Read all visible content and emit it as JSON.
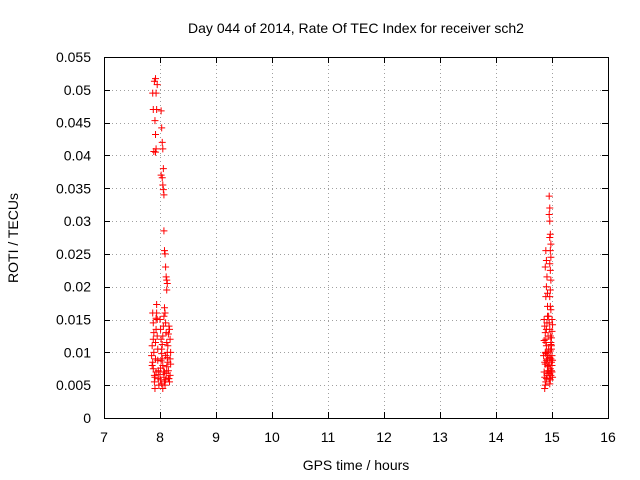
{
  "chart_data": {
    "type": "scatter",
    "title": "Day 044 of 2014, Rate Of TEC Index for receiver sch2",
    "xlabel": "GPS time / hours",
    "ylabel": "ROTI / TECUs",
    "xlim": [
      7,
      16
    ],
    "ylim": [
      0,
      0.055
    ],
    "xticks": [
      7,
      8,
      9,
      10,
      11,
      12,
      13,
      14,
      15,
      16
    ],
    "yticks": [
      0,
      0.005,
      0.01,
      0.015,
      0.02,
      0.025,
      0.03,
      0.035,
      0.04,
      0.045,
      0.05,
      0.055
    ],
    "xtick_labels": [
      "7",
      "8",
      "9",
      "10",
      "11",
      "12",
      "13",
      "14",
      "15",
      "16"
    ],
    "ytick_labels": [
      "0",
      "0.005",
      "0.01",
      "0.015",
      "0.02",
      "0.025",
      "0.03",
      "0.035",
      "0.04",
      "0.045",
      "0.05",
      "0.055"
    ],
    "grid": true,
    "marker": "+",
    "series": [
      {
        "name": "sch2",
        "color": "#ff0000",
        "points": [
          [
            7.87,
            0.0495
          ],
          [
            7.9,
            0.0513
          ],
          [
            7.92,
            0.0517
          ],
          [
            7.93,
            0.0495
          ],
          [
            7.95,
            0.0508
          ],
          [
            7.94,
            0.047
          ],
          [
            7.88,
            0.047
          ],
          [
            7.91,
            0.0453
          ],
          [
            7.92,
            0.0432
          ],
          [
            7.89,
            0.0406
          ],
          [
            7.92,
            0.0405
          ],
          [
            7.93,
            0.041
          ],
          [
            7.87,
            0.016
          ],
          [
            7.88,
            0.0145
          ],
          [
            7.88,
            0.012
          ],
          [
            7.89,
            0.01
          ],
          [
            7.87,
            0.0085
          ],
          [
            7.88,
            0.0075
          ],
          [
            7.9,
            0.0065
          ],
          [
            7.9,
            0.0055
          ],
          [
            7.91,
            0.0045
          ],
          [
            7.91,
            0.0062
          ],
          [
            7.92,
            0.009
          ],
          [
            7.92,
            0.0115
          ],
          [
            7.93,
            0.0135
          ],
          [
            7.93,
            0.0152
          ],
          [
            7.94,
            0.016
          ],
          [
            7.94,
            0.0173
          ],
          [
            7.95,
            0.015
          ],
          [
            7.95,
            0.0125
          ],
          [
            7.96,
            0.0105
          ],
          [
            7.96,
            0.0088
          ],
          [
            7.97,
            0.0072
          ],
          [
            7.97,
            0.006
          ],
          [
            7.98,
            0.005
          ],
          [
            7.86,
            0.011
          ],
          [
            7.85,
            0.0095
          ],
          [
            7.86,
            0.008
          ],
          [
            7.89,
            0.013
          ],
          [
            7.93,
            0.007
          ],
          [
            8.02,
            0.0468
          ],
          [
            8.03,
            0.0442
          ],
          [
            8.04,
            0.042
          ],
          [
            8.05,
            0.041
          ],
          [
            8.02,
            0.037
          ],
          [
            8.04,
            0.0366
          ],
          [
            8.05,
            0.0355
          ],
          [
            8.06,
            0.0348
          ],
          [
            8.07,
            0.034
          ],
          [
            8.06,
            0.038
          ],
          [
            8.07,
            0.0285
          ],
          [
            8.08,
            0.0255
          ],
          [
            8.09,
            0.025
          ],
          [
            8.1,
            0.023
          ],
          [
            8.11,
            0.0215
          ],
          [
            8.12,
            0.021
          ],
          [
            8.13,
            0.0205
          ],
          [
            8.12,
            0.0195
          ],
          [
            8.0,
            0.015
          ],
          [
            8.01,
            0.0135
          ],
          [
            8.02,
            0.012
          ],
          [
            8.03,
            0.0105
          ],
          [
            8.04,
            0.009
          ],
          [
            8.05,
            0.008
          ],
          [
            8.06,
            0.007
          ],
          [
            8.07,
            0.0062
          ],
          [
            8.08,
            0.0055
          ],
          [
            8.09,
            0.005
          ],
          [
            8.1,
            0.0058
          ],
          [
            8.11,
            0.0068
          ],
          [
            8.12,
            0.0078
          ],
          [
            8.13,
            0.0092
          ],
          [
            8.14,
            0.011
          ],
          [
            8.15,
            0.0128
          ],
          [
            8.16,
            0.014
          ],
          [
            8.17,
            0.0135
          ],
          [
            8.18,
            0.012
          ],
          [
            8.19,
            0.01
          ],
          [
            8.19,
            0.0082
          ],
          [
            8.18,
            0.0065
          ],
          [
            8.17,
            0.0055
          ],
          [
            8.16,
            0.006
          ],
          [
            8.15,
            0.0072
          ],
          [
            8.14,
            0.0085
          ],
          [
            8.13,
            0.01
          ],
          [
            8.12,
            0.0115
          ],
          [
            8.11,
            0.013
          ],
          [
            8.1,
            0.0145
          ],
          [
            8.09,
            0.016
          ],
          [
            8.08,
            0.0168
          ],
          [
            8.07,
            0.0155
          ],
          [
            8.06,
            0.014
          ],
          [
            8.05,
            0.0125
          ],
          [
            8.04,
            0.0112
          ],
          [
            8.03,
            0.0098
          ],
          [
            8.02,
            0.0087
          ],
          [
            8.01,
            0.0076
          ],
          [
            8.0,
            0.0066
          ],
          [
            8.01,
            0.0058
          ],
          [
            8.03,
            0.0052
          ],
          [
            8.05,
            0.0045
          ],
          [
            8.08,
            0.007
          ],
          [
            8.1,
            0.0095
          ],
          [
            8.15,
            0.006
          ],
          [
            8.18,
            0.009
          ],
          [
            14.89,
            0.0255
          ],
          [
            14.9,
            0.024
          ],
          [
            14.88,
            0.023
          ],
          [
            14.91,
            0.0215
          ],
          [
            14.9,
            0.02
          ],
          [
            14.92,
            0.019
          ],
          [
            14.89,
            0.0185
          ],
          [
            14.92,
            0.017
          ],
          [
            14.86,
            0.015
          ],
          [
            14.87,
            0.014
          ],
          [
            14.88,
            0.013
          ],
          [
            14.89,
            0.012
          ],
          [
            14.9,
            0.011
          ],
          [
            14.91,
            0.01
          ],
          [
            14.92,
            0.009
          ],
          [
            14.93,
            0.008
          ],
          [
            14.92,
            0.0072
          ],
          [
            14.91,
            0.0065
          ],
          [
            14.9,
            0.006
          ],
          [
            14.89,
            0.0055
          ],
          [
            14.88,
            0.005
          ],
          [
            14.87,
            0.0045
          ],
          [
            14.86,
            0.007
          ],
          [
            14.87,
            0.0085
          ],
          [
            14.88,
            0.01
          ],
          [
            14.89,
            0.0115
          ],
          [
            14.9,
            0.0135
          ],
          [
            14.91,
            0.0145
          ],
          [
            14.92,
            0.0155
          ],
          [
            14.93,
            0.0125
          ],
          [
            14.94,
            0.0105
          ],
          [
            14.93,
            0.0095
          ],
          [
            14.92,
            0.0078
          ],
          [
            14.91,
            0.0068
          ],
          [
            14.9,
            0.0088
          ],
          [
            14.89,
            0.0098
          ],
          [
            14.88,
            0.0082
          ],
          [
            14.87,
            0.0062
          ],
          [
            14.86,
            0.0118
          ],
          [
            14.85,
            0.0095
          ],
          [
            14.95,
            0.0338
          ],
          [
            14.96,
            0.032
          ],
          [
            14.95,
            0.031
          ],
          [
            14.96,
            0.03
          ],
          [
            14.97,
            0.028
          ],
          [
            14.96,
            0.0275
          ],
          [
            14.98,
            0.0265
          ],
          [
            14.97,
            0.0255
          ],
          [
            14.98,
            0.0245
          ],
          [
            14.96,
            0.0235
          ],
          [
            14.97,
            0.0225
          ],
          [
            14.98,
            0.021
          ],
          [
            14.97,
            0.0195
          ],
          [
            14.96,
            0.0185
          ],
          [
            14.97,
            0.017
          ],
          [
            14.98,
            0.0165
          ],
          [
            14.94,
            0.0155
          ],
          [
            14.95,
            0.0145
          ],
          [
            14.96,
            0.0135
          ],
          [
            14.97,
            0.0125
          ],
          [
            14.98,
            0.0115
          ],
          [
            14.99,
            0.0105
          ],
          [
            15.0,
            0.0095
          ],
          [
            15.01,
            0.0088
          ],
          [
            15.0,
            0.008
          ],
          [
            14.99,
            0.0072
          ],
          [
            14.98,
            0.0065
          ],
          [
            14.97,
            0.0058
          ],
          [
            14.96,
            0.0052
          ],
          [
            14.95,
            0.006
          ],
          [
            14.94,
            0.007
          ],
          [
            14.95,
            0.0082
          ],
          [
            14.96,
            0.0092
          ],
          [
            14.97,
            0.0102
          ],
          [
            14.98,
            0.0112
          ],
          [
            14.99,
            0.0122
          ],
          [
            15.0,
            0.0132
          ],
          [
            15.01,
            0.0142
          ],
          [
            15.0,
            0.015
          ],
          [
            14.99,
            0.011
          ],
          [
            14.98,
            0.009
          ],
          [
            14.97,
            0.0075
          ],
          [
            14.96,
            0.0068
          ],
          [
            15.01,
            0.0062
          ],
          [
            15.0,
            0.007
          ],
          [
            14.99,
            0.0085
          ]
        ]
      }
    ]
  }
}
